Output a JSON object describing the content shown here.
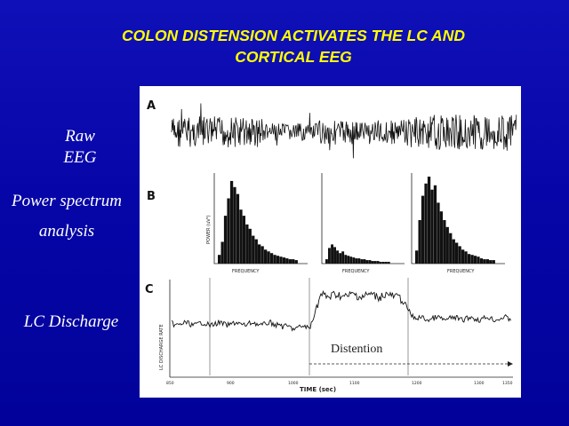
{
  "slide": {
    "title_line1": "COLON DISTENSION ACTIVATES THE LC AND",
    "title_line2": "CORTICAL EEG",
    "labels": {
      "raw_line1": "Raw",
      "raw_line2": "EEG",
      "power_line1": "Power spectrum",
      "power_line2": "analysis",
      "lc": "LC Discharge"
    }
  },
  "figure": {
    "panel_a": {
      "letter": "A"
    },
    "panel_b": {
      "letter": "B",
      "ylabel": "POWER (uV²)",
      "xlabel": "FREQUENCY",
      "spectra": [
        [
          0.1,
          0.25,
          0.55,
          0.75,
          0.95,
          0.88,
          0.8,
          0.62,
          0.55,
          0.45,
          0.4,
          0.32,
          0.28,
          0.22,
          0.2,
          0.16,
          0.14,
          0.12,
          0.1,
          0.09,
          0.08,
          0.07,
          0.06,
          0.05,
          0.05,
          0.04
        ],
        [
          0.05,
          0.18,
          0.22,
          0.19,
          0.15,
          0.12,
          0.14,
          0.1,
          0.09,
          0.08,
          0.07,
          0.06,
          0.06,
          0.05,
          0.05,
          0.04,
          0.04,
          0.03,
          0.03,
          0.03,
          0.02,
          0.02,
          0.02,
          0.02
        ],
        [
          0.15,
          0.5,
          0.78,
          0.92,
          1.0,
          0.85,
          0.9,
          0.7,
          0.6,
          0.5,
          0.42,
          0.35,
          0.28,
          0.24,
          0.2,
          0.16,
          0.14,
          0.11,
          0.1,
          0.09,
          0.08,
          0.06,
          0.05,
          0.05,
          0.04,
          0.04
        ]
      ]
    },
    "panel_c": {
      "letter": "C",
      "ylabel": "LC DISCHARGE RATE",
      "xlabel": "TIME (sec)",
      "ticks": [
        "850",
        "900",
        "1000",
        "1100",
        "1200",
        "1300",
        "1350"
      ],
      "distention_label": "Distention"
    }
  }
}
